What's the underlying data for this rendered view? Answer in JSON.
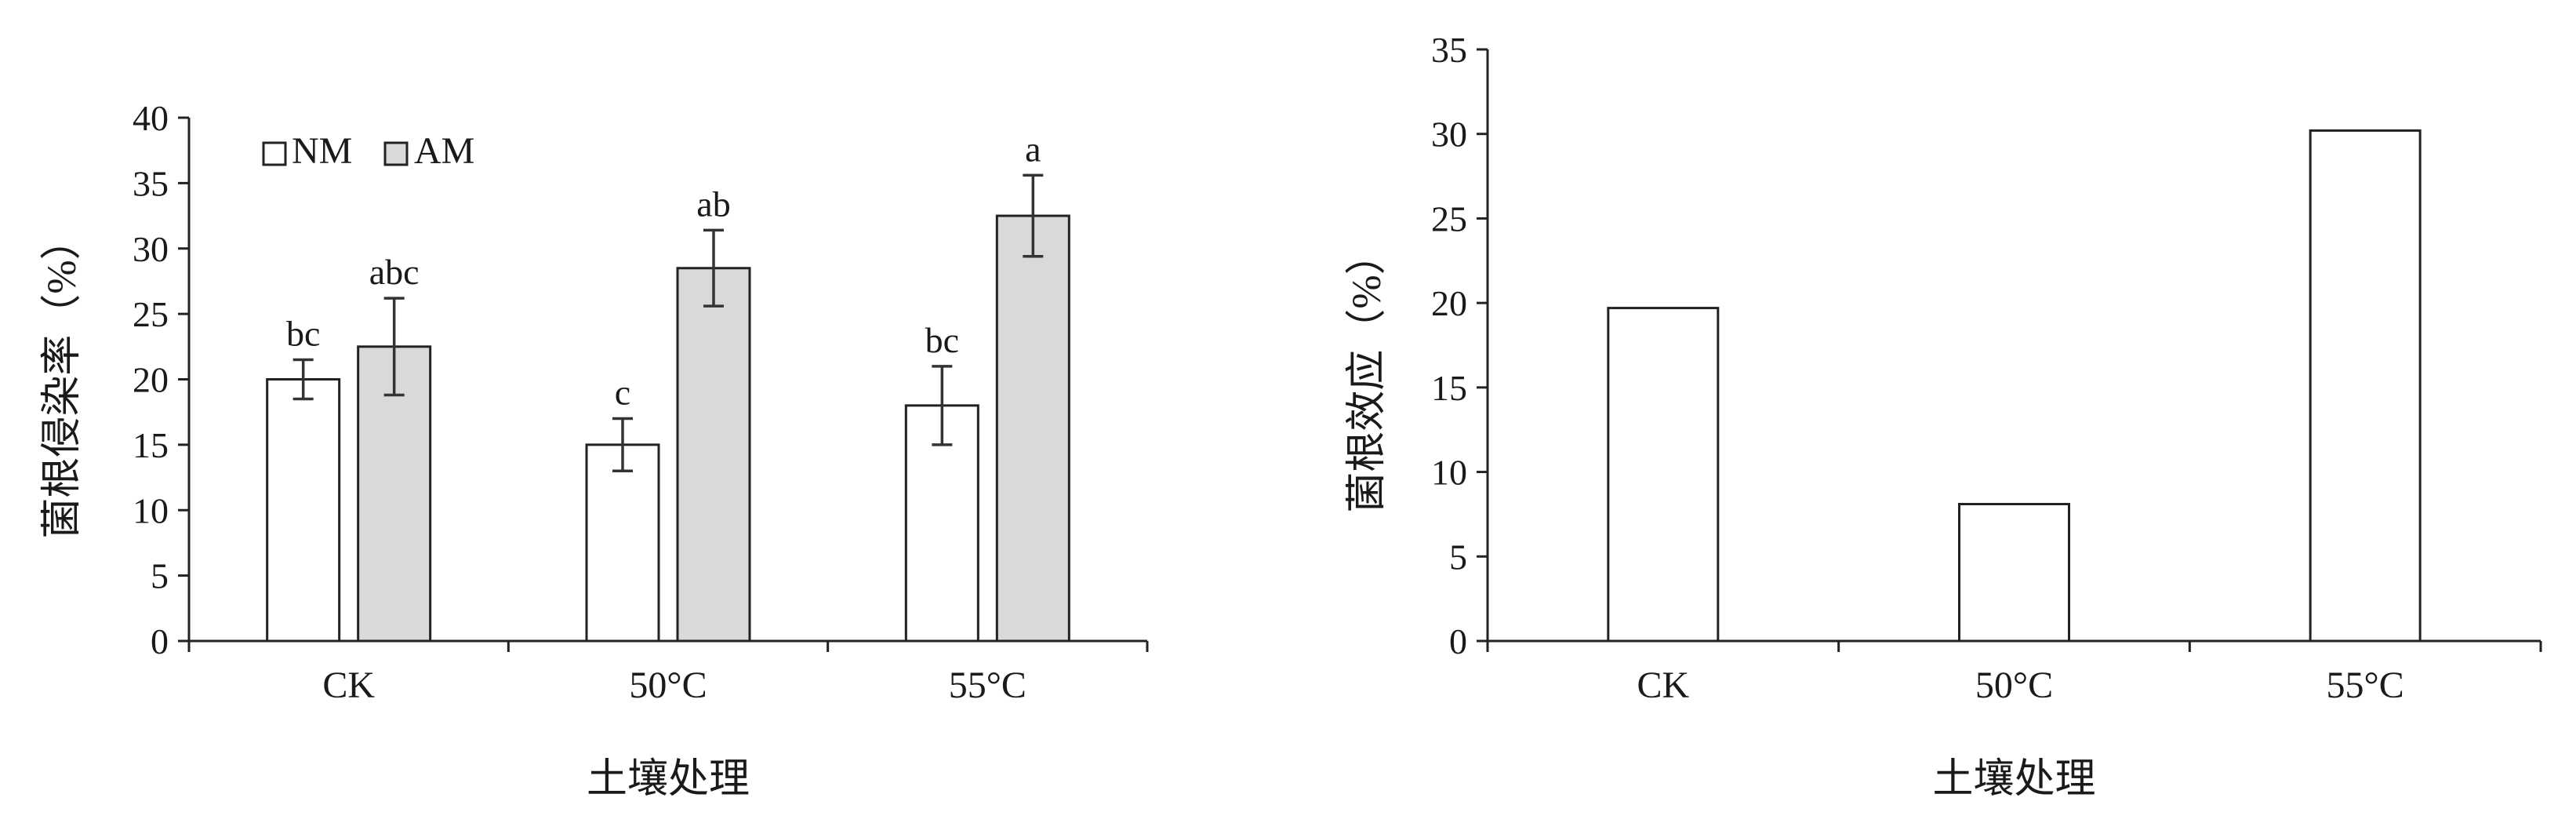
{
  "colors": {
    "nm_fill": "#ffffff",
    "am_fill": "#d9d9d9",
    "axis": "#222222"
  },
  "chart_data": [
    {
      "type": "bar",
      "ylabel": "菌根侵染率（%）",
      "xlabel": "土壤处理",
      "categories": [
        "CK",
        "50°C",
        "55°C"
      ],
      "ylim": [
        0,
        40
      ],
      "yticks": [
        0,
        5,
        10,
        15,
        20,
        25,
        30,
        35,
        40
      ],
      "grid": false,
      "legend_position": "top-left",
      "series": [
        {
          "name": "NM",
          "values": [
            20,
            15,
            18
          ],
          "errors": [
            1.5,
            2,
            3
          ],
          "labels": [
            "bc",
            "c",
            "bc"
          ]
        },
        {
          "name": "AM",
          "values": [
            22.5,
            28.5,
            32.5
          ],
          "errors": [
            3.7,
            2.9,
            3.1
          ],
          "labels": [
            "abc",
            "ab",
            "a"
          ]
        }
      ]
    },
    {
      "type": "bar",
      "ylabel": "菌根效应（%）",
      "xlabel": "土壤处理",
      "categories": [
        "CK",
        "50°C",
        "55°C"
      ],
      "ylim": [
        0,
        35
      ],
      "yticks": [
        0,
        5,
        10,
        15,
        20,
        25,
        30,
        35
      ],
      "grid": false,
      "values": [
        19.7,
        8.1,
        30.2
      ]
    }
  ]
}
